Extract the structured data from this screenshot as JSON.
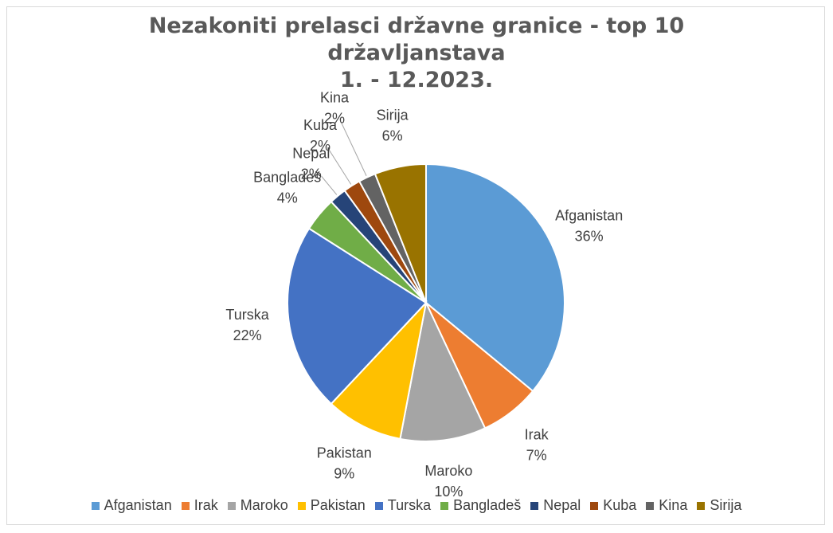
{
  "chart_data": {
    "type": "pie",
    "title": "Nezakoniti prelasci državne granice - top 10 državljanstava",
    "subtitle": "1. - 12.2023.",
    "categories": [
      "Afganistan",
      "Irak",
      "Maroko",
      "Pakistan",
      "Turska",
      "Bangladeš",
      "Nepal",
      "Kuba",
      "Kina",
      "Sirija"
    ],
    "values": [
      36,
      7,
      10,
      9,
      22,
      4,
      2,
      2,
      2,
      6
    ],
    "value_labels": [
      "36%",
      "7%",
      "10%",
      "9%",
      "22%",
      "4%",
      "2%",
      "2%",
      "2%",
      "6%"
    ],
    "colors": [
      "#5b9bd5",
      "#ed7d31",
      "#a5a5a5",
      "#ffc000",
      "#4472c4",
      "#70ad47",
      "#264478",
      "#9e480e",
      "#636363",
      "#997300"
    ],
    "legend": "bottom"
  }
}
